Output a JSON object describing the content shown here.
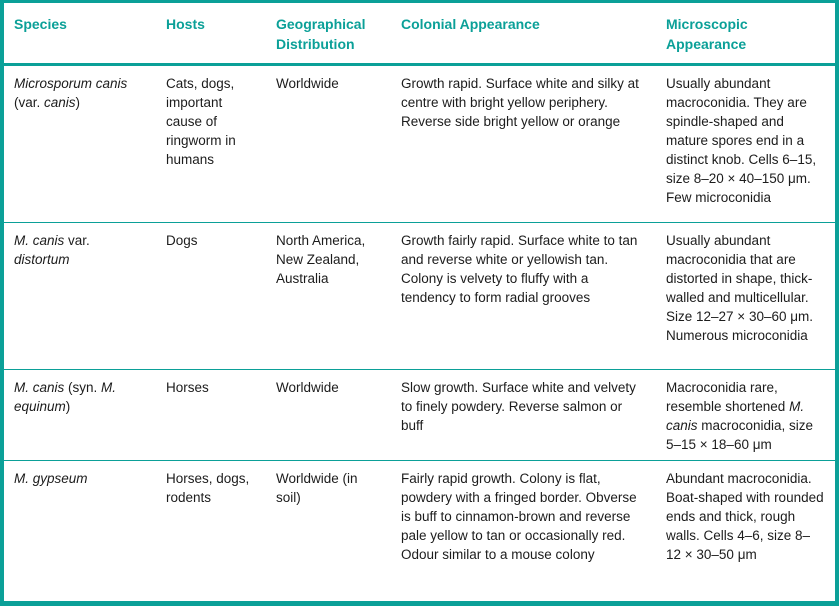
{
  "colors": {
    "accent_teal": "#0ba098",
    "body_text": "#1c1c1c",
    "background": "#ffffff"
  },
  "table": {
    "columns": [
      {
        "label": "Species"
      },
      {
        "label": "Hosts"
      },
      {
        "label": "Geographical Distribution"
      },
      {
        "label": "Colonial Appearance"
      },
      {
        "label": "Microscopic Appearance"
      }
    ],
    "rows": [
      {
        "species": [
          {
            "text": "Microsporum canis",
            "italic": true
          },
          {
            "text": " (var. ",
            "italic": false
          },
          {
            "text": "canis",
            "italic": true
          },
          {
            "text": ")",
            "italic": false
          }
        ],
        "hosts": [
          {
            "text": "Cats, dogs, important cause of ringworm in humans",
            "italic": false
          }
        ],
        "distribution": [
          {
            "text": "Worldwide",
            "italic": false
          }
        ],
        "colonial": [
          {
            "text": "Growth rapid. Surface white and silky at centre with bright yellow periphery. Reverse side bright yellow or orange",
            "italic": false
          }
        ],
        "microscopic": [
          {
            "text": "Usually abundant macroconidia. They are spindle-shaped and mature spores end in a distinct knob. Cells 6–15, size 8–20 × 40–150 μm. Few microconidia",
            "italic": false
          }
        ]
      },
      {
        "species": [
          {
            "text": "M. canis",
            "italic": true
          },
          {
            "text": " var. ",
            "italic": false
          },
          {
            "text": "distortum",
            "italic": true
          }
        ],
        "hosts": [
          {
            "text": "Dogs",
            "italic": false
          }
        ],
        "distribution": [
          {
            "text": "North America, New Zealand, Australia",
            "italic": false
          }
        ],
        "colonial": [
          {
            "text": "Growth fairly rapid. Surface white to tan and reverse white or yellowish tan. Colony is velvety to fluffy with a tendency to form radial grooves",
            "italic": false
          }
        ],
        "microscopic": [
          {
            "text": "Usually abundant macroconidia that are distorted in shape, thick-walled and multicellular. Size 12–27 × 30–60 μm. Numerous microconidia",
            "italic": false
          }
        ]
      },
      {
        "species": [
          {
            "text": "M. canis",
            "italic": true
          },
          {
            "text": " (syn. ",
            "italic": false
          },
          {
            "text": "M. equinum",
            "italic": true
          },
          {
            "text": ")",
            "italic": false
          }
        ],
        "hosts": [
          {
            "text": "Horses",
            "italic": false
          }
        ],
        "distribution": [
          {
            "text": "Worldwide",
            "italic": false
          }
        ],
        "colonial": [
          {
            "text": "Slow growth. Surface white and velvety to finely powdery. Reverse salmon or buff",
            "italic": false
          }
        ],
        "microscopic": [
          {
            "text": "Macroconidia rare, resemble shortened ",
            "italic": false
          },
          {
            "text": "M. canis",
            "italic": true
          },
          {
            "text": " macroconidia, size 5–15 × 18–60 μm",
            "italic": false
          }
        ]
      },
      {
        "species": [
          {
            "text": "M. gypseum",
            "italic": true
          }
        ],
        "hosts": [
          {
            "text": "Horses, dogs, rodents",
            "italic": false
          }
        ],
        "distribution": [
          {
            "text": "Worldwide (in soil)",
            "italic": false
          }
        ],
        "colonial": [
          {
            "text": "Fairly rapid growth. Colony is flat, powdery with a fringed border. Obverse is buff to cinnamon-brown and reverse pale yellow to tan or occasionally red. Odour similar to a mouse colony",
            "italic": false
          }
        ],
        "microscopic": [
          {
            "text": "Abundant macroconidia. Boat-shaped with rounded ends and thick, rough walls. Cells 4–6, size 8–12 × 30–50 μm",
            "italic": false
          }
        ]
      }
    ]
  }
}
